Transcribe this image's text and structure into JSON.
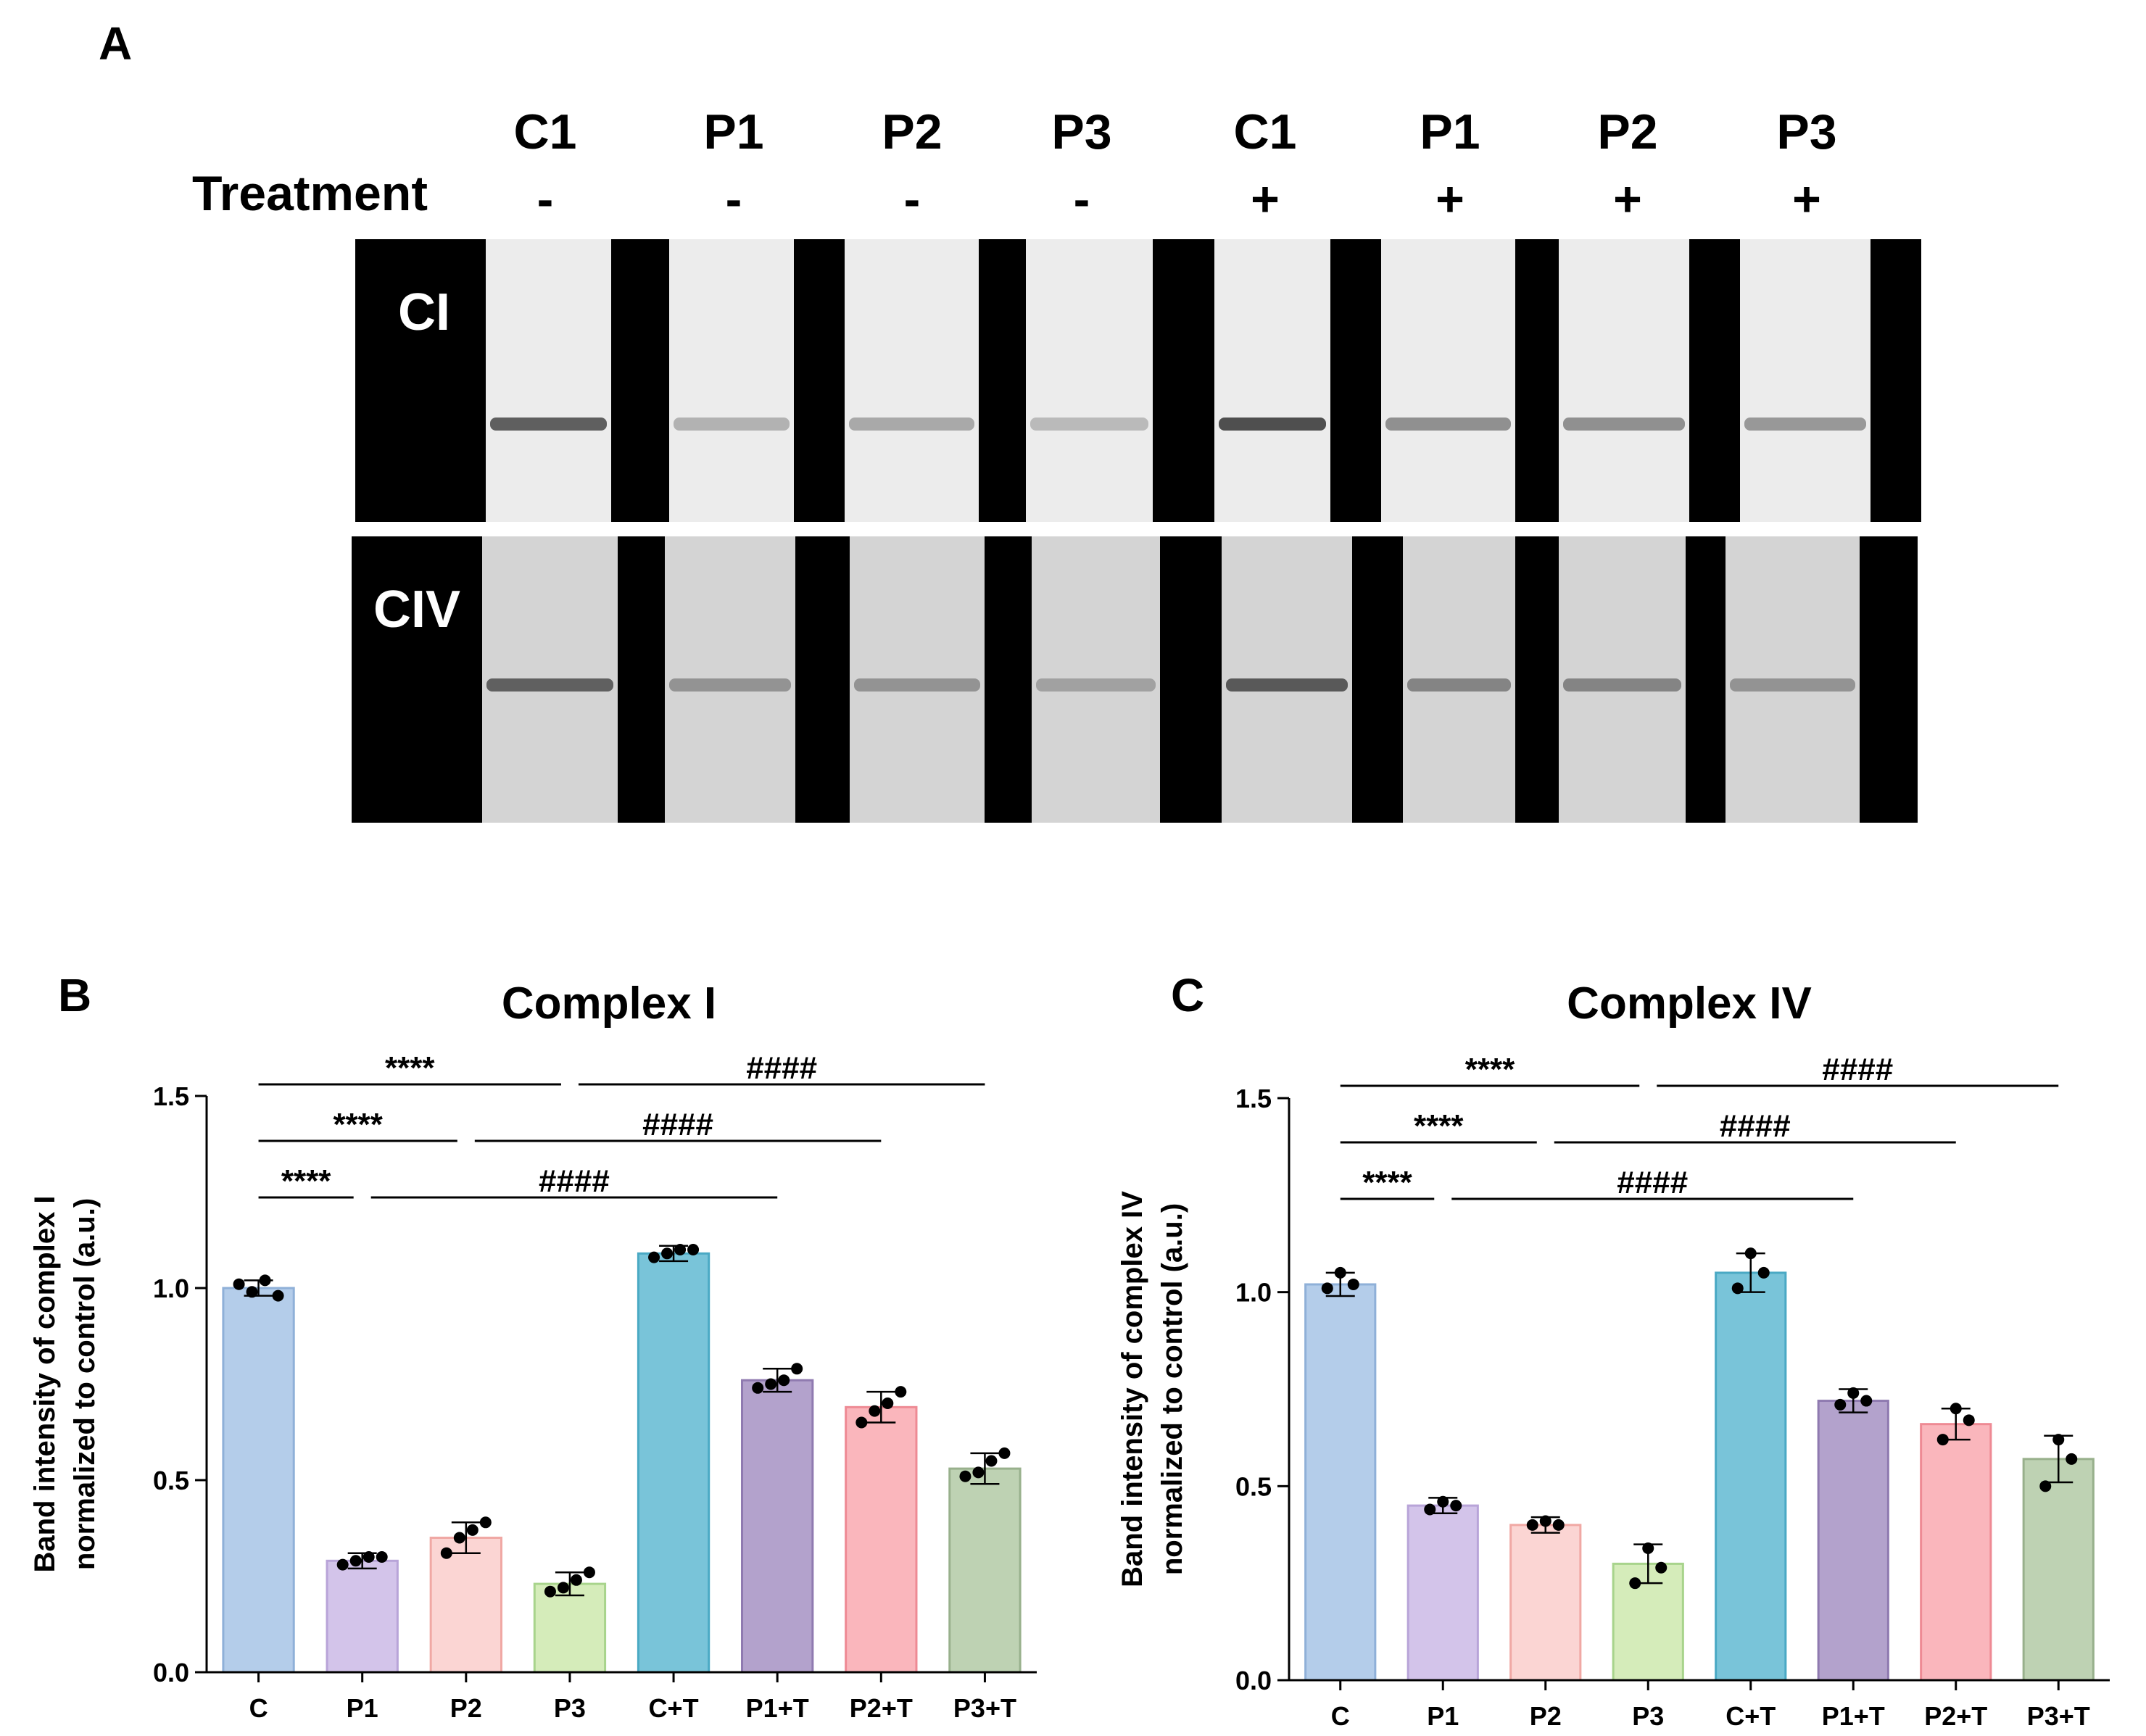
{
  "figure": {
    "panel_a": {
      "letter": "A",
      "lanes": [
        "C1",
        "P1",
        "P2",
        "P3",
        "C1",
        "P1",
        "P2",
        "P3"
      ],
      "treatment_label": "Treatment",
      "treatment_signs": [
        "-",
        "-",
        "-",
        "-",
        "+",
        "+",
        "+",
        "+"
      ],
      "blots": [
        {
          "label": "CI",
          "band_intensity": [
            0.85,
            0.35,
            0.4,
            0.3,
            0.95,
            0.55,
            0.55,
            0.5
          ]
        },
        {
          "label": "CIV",
          "band_intensity": [
            0.8,
            0.45,
            0.45,
            0.35,
            0.85,
            0.55,
            0.55,
            0.45
          ]
        }
      ]
    }
  },
  "chart_data": [
    {
      "panel": "B",
      "type": "bar",
      "title": "Complex I",
      "ylabel_line1": "Band intensity of complex I",
      "ylabel_line2": "normalized to control (a.u.)",
      "ylim": [
        0,
        1.5
      ],
      "yticks": [
        "0.0",
        "0.5",
        "1.0",
        "1.5"
      ],
      "categories": [
        "C",
        "P1",
        "P2",
        "P3",
        "C+T",
        "P1+T",
        "P2+T",
        "P3+T"
      ],
      "colors": [
        "#b4cdea",
        "#d3c4ea",
        "#fbd5d3",
        "#d5ecba",
        "#79c4d9",
        "#b3a2cc",
        "#fab6bc",
        "#bed2b3"
      ],
      "edge_colors": [
        "#8fb0d8",
        "#b8a4d8",
        "#f0a8a4",
        "#a8d48c",
        "#4aa9c4",
        "#8f7ab0",
        "#ee8a94",
        "#98b08c"
      ],
      "values": [
        1.0,
        0.29,
        0.35,
        0.23,
        1.09,
        0.76,
        0.69,
        0.53
      ],
      "errors": [
        0.02,
        0.02,
        0.04,
        0.03,
        0.02,
        0.03,
        0.04,
        0.04
      ],
      "points": [
        [
          1.01,
          0.99,
          1.02,
          0.98
        ],
        [
          0.28,
          0.29,
          0.3,
          0.3
        ],
        [
          0.31,
          0.35,
          0.37,
          0.39
        ],
        [
          0.21,
          0.22,
          0.24,
          0.26
        ],
        [
          1.08,
          1.09,
          1.1,
          1.1
        ],
        [
          0.74,
          0.75,
          0.76,
          0.79
        ],
        [
          0.65,
          0.68,
          0.7,
          0.73
        ],
        [
          0.51,
          0.52,
          0.55,
          0.57
        ]
      ],
      "significance": [
        {
          "label": "****",
          "from": 0,
          "to": 3
        },
        {
          "label": "####",
          "from": 3,
          "to": 7
        },
        {
          "label": "****",
          "from": 0,
          "to": 2
        },
        {
          "label": "####",
          "from": 2,
          "to": 6
        },
        {
          "label": "****",
          "from": 0,
          "to": 1
        },
        {
          "label": "####",
          "from": 1,
          "to": 5
        }
      ]
    },
    {
      "panel": "C",
      "type": "bar",
      "title": "Complex IV",
      "ylabel_line1": "Band intensity of complex IV",
      "ylabel_line2": "normalized to control (a.u.)",
      "ylim": [
        0,
        1.5
      ],
      "yticks": [
        "0.0",
        "0.5",
        "1.0",
        "1.5"
      ],
      "categories": [
        "C",
        "P1",
        "P2",
        "P3",
        "C+T",
        "P1+T",
        "P2+T",
        "P3+T"
      ],
      "colors": [
        "#b4cdea",
        "#d3c4ea",
        "#fbd5d3",
        "#d5ecba",
        "#79c4d9",
        "#b3a2cc",
        "#fab6bc",
        "#bed2b3"
      ],
      "edge_colors": [
        "#8fb0d8",
        "#b8a4d8",
        "#f0a8a4",
        "#a8d48c",
        "#4aa9c4",
        "#8f7ab0",
        "#ee8a94",
        "#98b08c"
      ],
      "values": [
        1.02,
        0.45,
        0.4,
        0.3,
        1.05,
        0.72,
        0.66,
        0.57
      ],
      "errors": [
        0.03,
        0.02,
        0.02,
        0.05,
        0.05,
        0.03,
        0.04,
        0.06
      ],
      "points": [
        [
          1.01,
          1.05,
          1.02
        ],
        [
          0.44,
          0.46,
          0.45
        ],
        [
          0.4,
          0.41,
          0.4
        ],
        [
          0.25,
          0.34,
          0.29
        ],
        [
          1.01,
          1.1,
          1.05
        ],
        [
          0.71,
          0.74,
          0.72
        ],
        [
          0.62,
          0.7,
          0.67
        ],
        [
          0.5,
          0.62,
          0.57
        ]
      ],
      "significance": [
        {
          "label": "****",
          "from": 0,
          "to": 3
        },
        {
          "label": "####",
          "from": 3,
          "to": 7
        },
        {
          "label": "****",
          "from": 0,
          "to": 2
        },
        {
          "label": "####",
          "from": 2,
          "to": 6
        },
        {
          "label": "****",
          "from": 0,
          "to": 1
        },
        {
          "label": "####",
          "from": 1,
          "to": 5
        }
      ]
    }
  ]
}
